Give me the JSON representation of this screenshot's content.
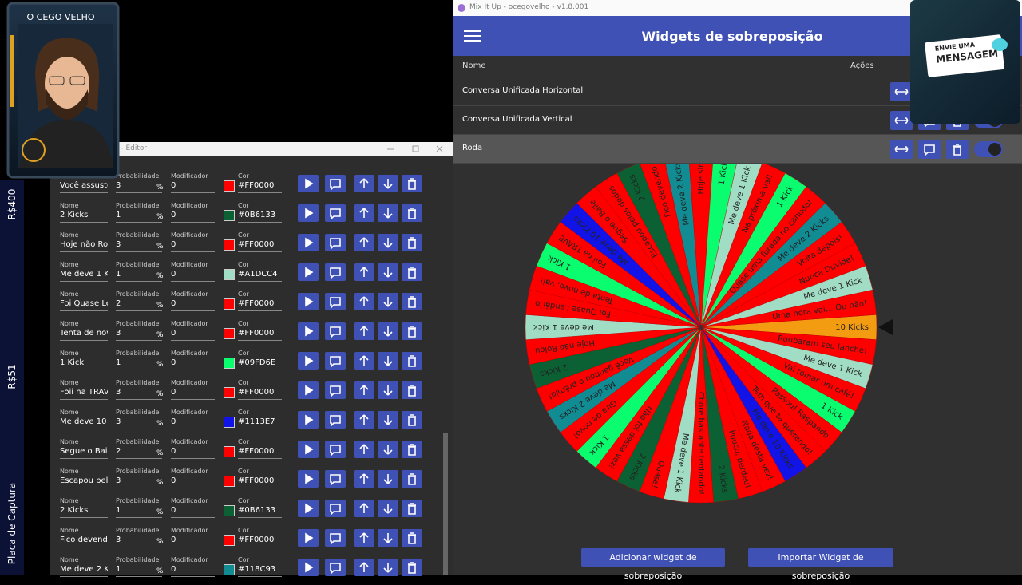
{
  "stream": {
    "channel_name": "O CEGO VELHO",
    "sidebar": [
      "R$400",
      "R$51",
      "Placa de Captura"
    ],
    "overlay_line1": "ENVIE UMA",
    "overlay_line2": "MENSAGEM"
  },
  "editor": {
    "title": "o - Editor",
    "field_labels": {
      "name": "Nome",
      "probability": "Probabilidade",
      "modifier": "Modificador",
      "color": "Cor"
    },
    "percent": "%",
    "rows": [
      {
        "name": "Você assusto",
        "probability": 3,
        "modifier": 0,
        "color": "#FF0000"
      },
      {
        "name": "2 Kicks",
        "probability": 1,
        "modifier": 0,
        "color": "#0B6133"
      },
      {
        "name": "Hoje não Rolo",
        "probability": 3,
        "modifier": 0,
        "color": "#FF0000"
      },
      {
        "name": "Me deve 1 Kic",
        "probability": 1,
        "modifier": 0,
        "color": "#A1DCC4"
      },
      {
        "name": "Foi Quase Ler",
        "probability": 2,
        "modifier": 0,
        "color": "#FF0000"
      },
      {
        "name": "Tenta de novo",
        "probability": 3,
        "modifier": 0,
        "color": "#FF0000"
      },
      {
        "name": "1 Kick",
        "probability": 1,
        "modifier": 0,
        "color": "#09FD6E"
      },
      {
        "name": "Foii na TRAVE",
        "probability": 3,
        "modifier": 0,
        "color": "#FF0000"
      },
      {
        "name": "Me deve 10 K",
        "probability": 3,
        "modifier": 0,
        "color": "#1113E7"
      },
      {
        "name": "Segue o Baile",
        "probability": 2,
        "modifier": 0,
        "color": "#FF0000"
      },
      {
        "name": "Escapou pelo",
        "probability": 3,
        "modifier": 0,
        "color": "#FF0000"
      },
      {
        "name": "2 Kicks",
        "probability": 1,
        "modifier": 0,
        "color": "#0B6133"
      },
      {
        "name": "Fico devendo",
        "probability": 3,
        "modifier": 0,
        "color": "#FF0000"
      },
      {
        "name": "Me deve 2 Kic",
        "probability": 1,
        "modifier": 0,
        "color": "#118C93"
      }
    ]
  },
  "mixitup": {
    "window_title": "Mix It Up - ocegovelho - v1.8.001",
    "header": "Widgets de sobreposição",
    "columns": [
      "Nome",
      "Ações"
    ],
    "rows": [
      "Conversa Unificada Horizontal",
      "Conversa Unificada Vertical",
      "Roda"
    ],
    "buttons": [
      "Adicionar widget de sobreposição",
      "Importar Widget de sobreposição"
    ]
  },
  "wheel": {
    "segments": [
      {
        "label": "10 Kicks",
        "color": "#F39C12"
      },
      {
        "label": "Roubaram seu lanche!",
        "color": "#FF0000"
      },
      {
        "label": "Me deve 1 Kick",
        "color": "#A1DCC4"
      },
      {
        "label": "Vai tomar um café!",
        "color": "#FF0000"
      },
      {
        "label": "1 Kick",
        "color": "#09FD6E"
      },
      {
        "label": "Passou! Raspando",
        "color": "#FF0000"
      },
      {
        "label": "Tem que ta querendo!",
        "color": "#FF0000"
      },
      {
        "label": "Me deve 10 Kicks",
        "color": "#1113E7"
      },
      {
        "label": "Nada desta vez!",
        "color": "#FF0000"
      },
      {
        "label": "Pouco, perdeu!",
        "color": "#FF0000"
      },
      {
        "label": "2 Kicks",
        "color": "#0B6133"
      },
      {
        "label": "Chore bastante tentando!",
        "color": "#FF0000"
      },
      {
        "label": "Me deve 1 Kick",
        "color": "#A1DCC4"
      },
      {
        "label": "Quase!",
        "color": "#FF0000"
      },
      {
        "label": "2 Kicks",
        "color": "#0B6133"
      },
      {
        "label": "Não foi dessa vez!",
        "color": "#FF0000"
      },
      {
        "label": "1 Kick",
        "color": "#09FD6E"
      },
      {
        "label": "Gira de novo!",
        "color": "#FF0000"
      },
      {
        "label": "Me deve 2 Kicks",
        "color": "#118C93"
      },
      {
        "label": "Você ganhou o prêmio!",
        "color": "#FF0000"
      },
      {
        "label": "2 Kicks",
        "color": "#0B6133"
      },
      {
        "label": "Hoje não Rolou",
        "color": "#FF0000"
      },
      {
        "label": "Me deve 1 Kick",
        "color": "#A1DCC4"
      },
      {
        "label": "Foi Quase Lendário",
        "color": "#FF0000"
      },
      {
        "label": "Tenta de novo, vai!",
        "color": "#FF0000"
      },
      {
        "label": "1 Kick",
        "color": "#09FD6E"
      },
      {
        "label": "Foii na TRAVE",
        "color": "#FF0000"
      },
      {
        "label": "Me deve 10 Kicks",
        "color": "#1113E7"
      },
      {
        "label": "Segue o Baile",
        "color": "#FF0000"
      },
      {
        "label": "Escapou pelos dedos",
        "color": "#FF0000"
      },
      {
        "label": "2 Kicks",
        "color": "#0B6133"
      },
      {
        "label": "Fico devendo",
        "color": "#FF0000"
      },
      {
        "label": "Me deve 2 Kicks",
        "color": "#118C93"
      },
      {
        "label": "Hoje sim",
        "color": "#FF0000"
      },
      {
        "label": "1 Kick",
        "color": "#09FD6E"
      },
      {
        "label": "Me deve 1 Kick",
        "color": "#A1DCC4"
      },
      {
        "label": "Na próxima vai!",
        "color": "#FF0000"
      },
      {
        "label": "1 Kick",
        "color": "#09FD6E"
      },
      {
        "label": "Quase uma furada no canudo!",
        "color": "#FF0000"
      },
      {
        "label": "Me deve 2 Kicks",
        "color": "#118C93"
      },
      {
        "label": "Volta depois!",
        "color": "#FF0000"
      },
      {
        "label": "Nunca Duvide!",
        "color": "#FF0000"
      },
      {
        "label": "Me deve 1 Kick",
        "color": "#A1DCC4"
      },
      {
        "label": "Uma hora vai... Ou não!",
        "color": "#FF0000"
      }
    ]
  }
}
